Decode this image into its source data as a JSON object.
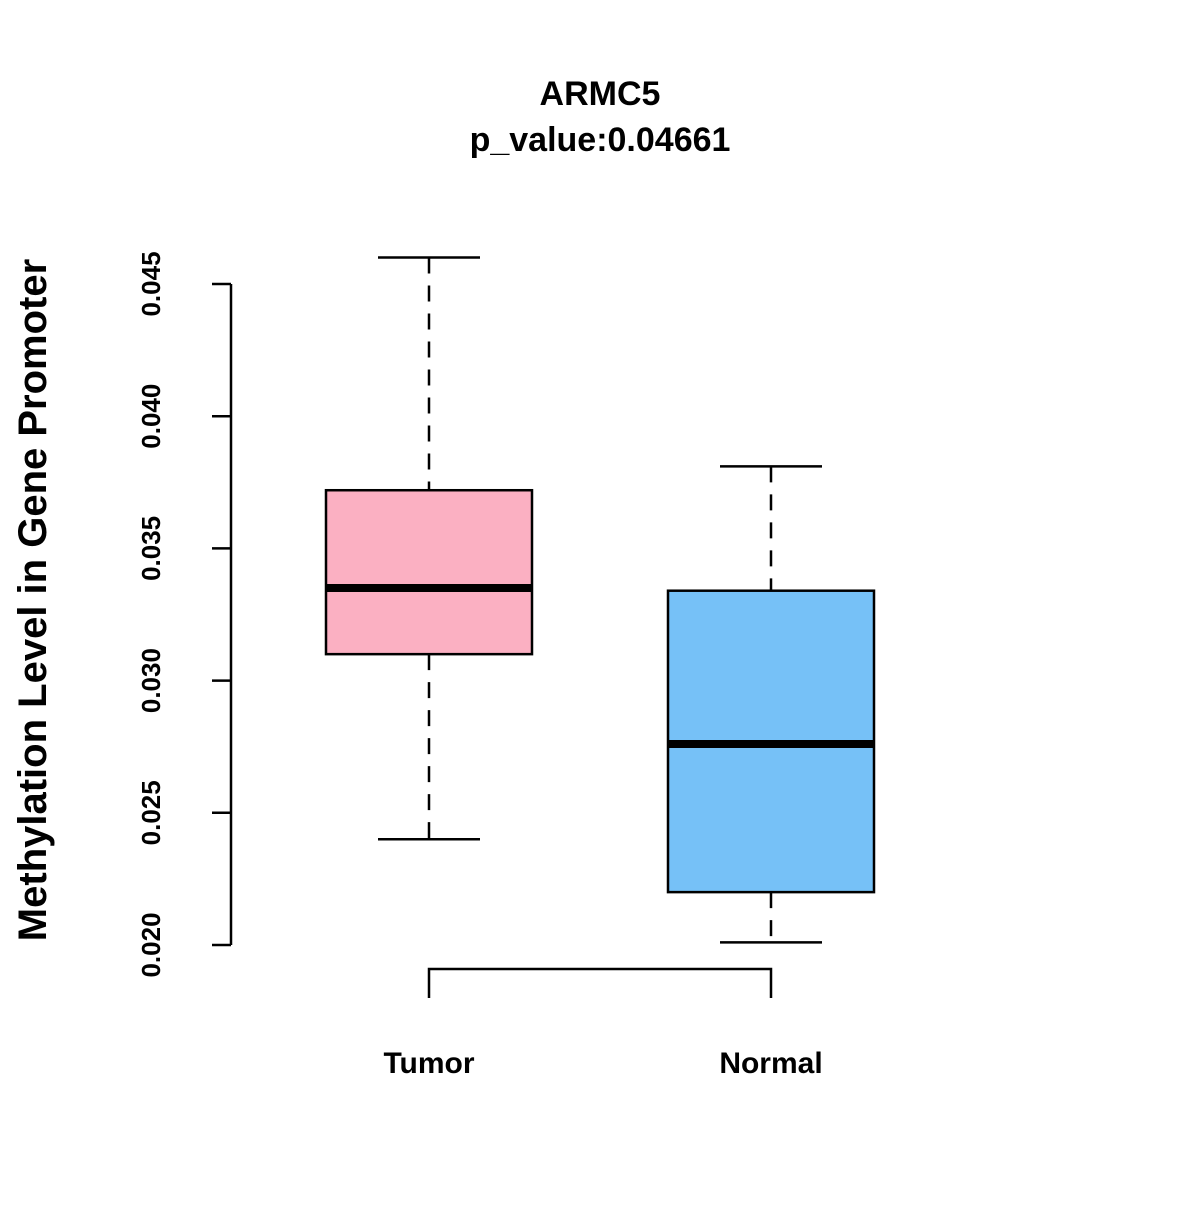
{
  "chart_data": {
    "type": "boxplot",
    "title": "ARMC5",
    "subtitle": "p_value:0.04661",
    "xlabel": "",
    "ylabel": "Methylation Level in Gene Promoter",
    "ylim": [
      0.02,
      0.045
    ],
    "yticks": [
      "0.020",
      "0.025",
      "0.030",
      "0.035",
      "0.040",
      "0.045"
    ],
    "categories": [
      "Tumor",
      "Normal"
    ],
    "boxes": [
      {
        "name": "Tumor",
        "whisker_low": 0.024,
        "q1": 0.031,
        "median": 0.0335,
        "q3": 0.0372,
        "whisker_high": 0.046,
        "color": "#FBB0C2"
      },
      {
        "name": "Normal",
        "whisker_low": 0.0201,
        "q1": 0.022,
        "median": 0.0276,
        "q3": 0.0334,
        "whisker_high": 0.0381,
        "color": "#76C1F7"
      }
    ],
    "comparison_bracket": [
      "Tumor",
      "Normal"
    ],
    "grid": false
  }
}
